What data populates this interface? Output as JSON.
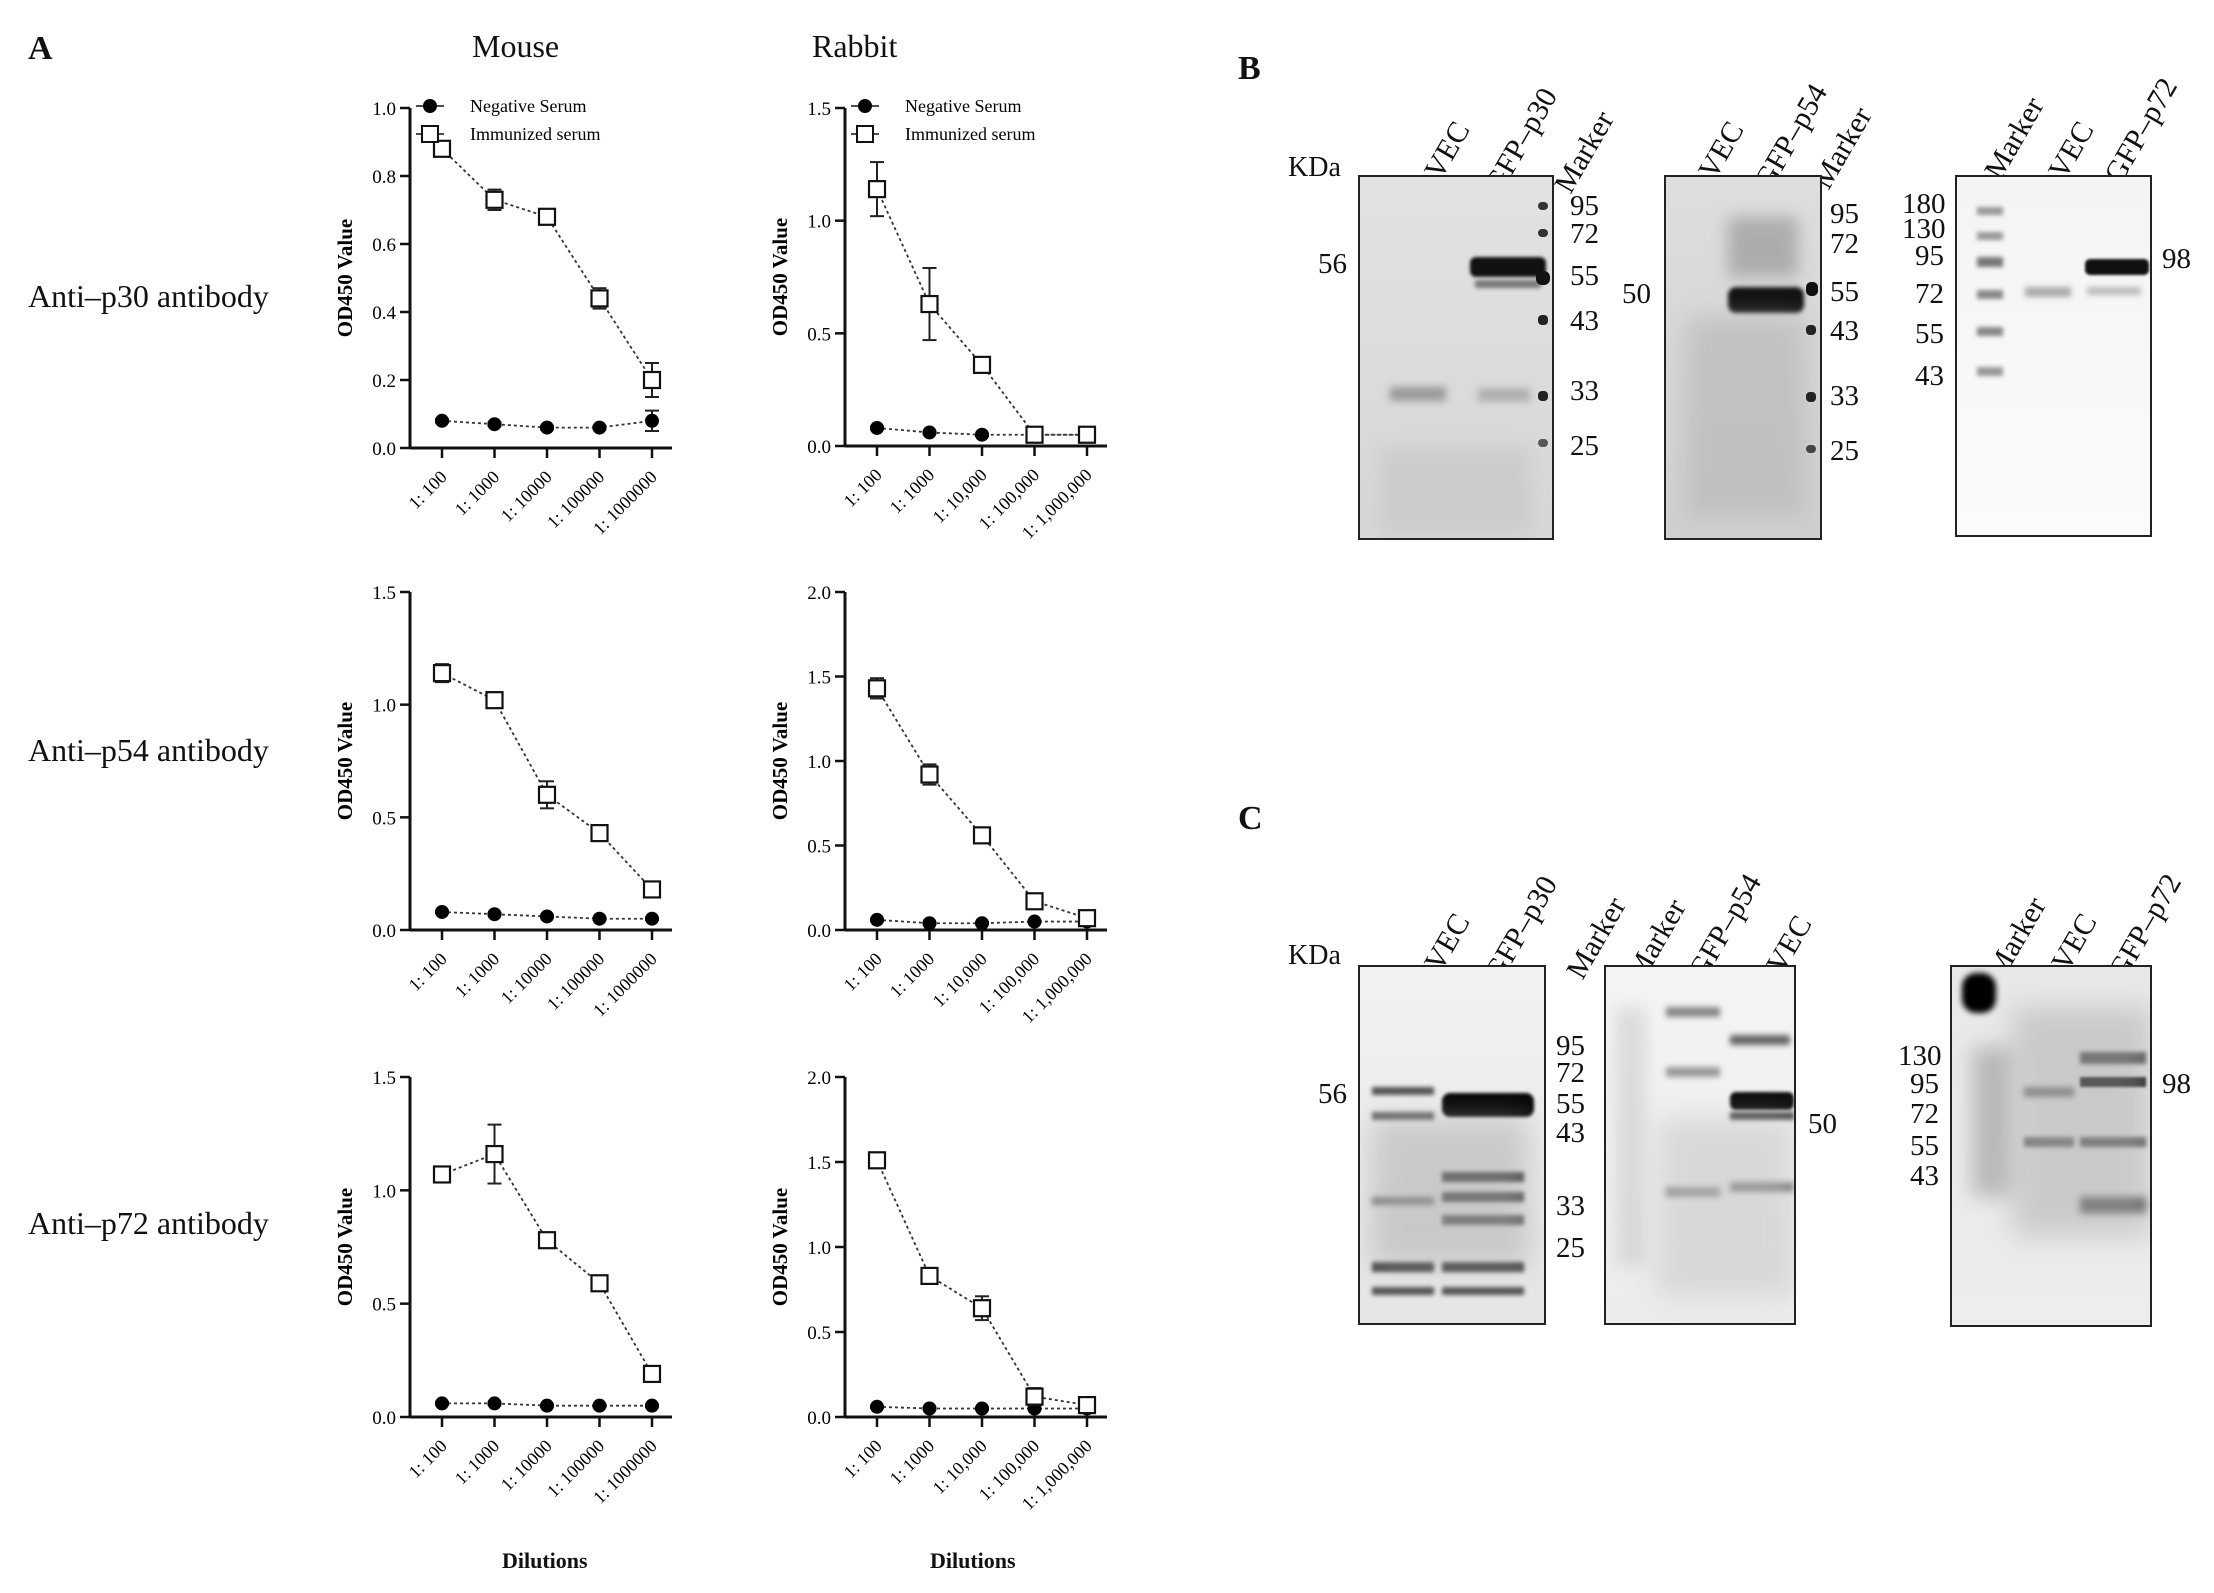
{
  "panels": {
    "A": "A",
    "B": "B",
    "C": "C"
  },
  "species": [
    "Mouse",
    "Rabbit"
  ],
  "row_labels": [
    "Anti–p30 antibody",
    "Anti–p54 antibody",
    "Anti–p72 antibody"
  ],
  "x_title": "Dilutions",
  "y_title": "OD450 Value",
  "legend": [
    "Negative Serum",
    "Immunized serum"
  ],
  "chart_data": [
    {
      "type": "line",
      "antibody": "Anti–p30 antibody",
      "species": "Mouse",
      "categories": [
        "1: 100",
        "1: 1000",
        "1: 10000",
        "1: 100000",
        "1: 1000000"
      ],
      "ylim": [
        0,
        1.0
      ],
      "yticks": [
        "0.0",
        "0.2",
        "0.4",
        "0.6",
        "0.8",
        "1.0"
      ],
      "ytick_values": [
        0,
        0.2,
        0.4,
        0.6,
        0.8,
        1.0
      ],
      "series": [
        {
          "name": "Negative Serum",
          "values": [
            0.08,
            0.07,
            0.06,
            0.06,
            0.08
          ],
          "err": [
            0.005,
            0.005,
            0.005,
            0.005,
            0.03
          ]
        },
        {
          "name": "Immunized serum",
          "values": [
            0.88,
            0.73,
            0.68,
            0.44,
            0.2
          ],
          "err": [
            0.015,
            0.03,
            0.02,
            0.03,
            0.05
          ]
        }
      ]
    },
    {
      "type": "line",
      "antibody": "Anti–p30 antibody",
      "species": "Rabbit",
      "categories": [
        "1: 100",
        "1: 1000",
        "1: 10,000",
        "1: 100,000",
        "1: 1,000,000"
      ],
      "ylim": [
        0,
        1.5
      ],
      "yticks": [
        "0.0",
        "0.5",
        "1.0",
        "1.5"
      ],
      "ytick_values": [
        0,
        0.5,
        1.0,
        1.5
      ],
      "series": [
        {
          "name": "Negative Serum",
          "values": [
            0.08,
            0.06,
            0.05,
            0.05,
            0.05
          ],
          "err": [
            0.005,
            0.005,
            0.005,
            0.005,
            0.005
          ]
        },
        {
          "name": "Immunized serum",
          "values": [
            1.14,
            0.63,
            0.36,
            0.05,
            0.05
          ],
          "err": [
            0.12,
            0.16,
            0.02,
            0.01,
            0.01
          ]
        }
      ]
    },
    {
      "type": "line",
      "antibody": "Anti–p54 antibody",
      "species": "Mouse",
      "categories": [
        "1: 100",
        "1: 1000",
        "1: 10000",
        "1: 100000",
        "1: 1000000"
      ],
      "ylim": [
        0,
        1.5
      ],
      "yticks": [
        "0.0",
        "0.5",
        "1.0",
        "1.5"
      ],
      "ytick_values": [
        0,
        0.5,
        1.0,
        1.5
      ],
      "series": [
        {
          "name": "Negative Serum",
          "values": [
            0.08,
            0.07,
            0.06,
            0.05,
            0.05
          ],
          "err": [
            0.005,
            0.005,
            0.005,
            0.005,
            0.005
          ]
        },
        {
          "name": "Immunized serum",
          "values": [
            1.14,
            1.02,
            0.6,
            0.43,
            0.18
          ],
          "err": [
            0.04,
            0.03,
            0.06,
            0.03,
            0.03
          ]
        }
      ]
    },
    {
      "type": "line",
      "antibody": "Anti–p54 antibody",
      "species": "Rabbit",
      "categories": [
        "1: 100",
        "1: 1000",
        "1: 10,000",
        "1: 100,000",
        "1: 1,000,000"
      ],
      "ylim": [
        0,
        2.0
      ],
      "yticks": [
        "0.0",
        "0.5",
        "1.0",
        "1.5",
        "2.0"
      ],
      "ytick_values": [
        0,
        0.5,
        1.0,
        1.5,
        2.0
      ],
      "series": [
        {
          "name": "Negative Serum",
          "values": [
            0.06,
            0.04,
            0.04,
            0.05,
            0.05
          ],
          "err": [
            0.005,
            0.005,
            0.005,
            0.005,
            0.005
          ]
        },
        {
          "name": "Immunized serum",
          "values": [
            1.43,
            0.92,
            0.56,
            0.17,
            0.07
          ],
          "err": [
            0.06,
            0.06,
            0.03,
            0.02,
            0.01
          ]
        }
      ]
    },
    {
      "type": "line",
      "antibody": "Anti–p72 antibody",
      "species": "Mouse",
      "categories": [
        "1: 100",
        "1: 1000",
        "1: 10000",
        "1: 100000",
        "1: 1000000"
      ],
      "ylim": [
        0,
        1.5
      ],
      "yticks": [
        "0.0",
        "0.5",
        "1.0",
        "1.5"
      ],
      "ytick_values": [
        0,
        0.5,
        1.0,
        1.5
      ],
      "series": [
        {
          "name": "Negative Serum",
          "values": [
            0.06,
            0.06,
            0.05,
            0.05,
            0.05
          ],
          "err": [
            0.005,
            0.005,
            0.005,
            0.005,
            0.005
          ]
        },
        {
          "name": "Immunized serum",
          "values": [
            1.07,
            1.16,
            0.78,
            0.59,
            0.19
          ],
          "err": [
            0.03,
            0.13,
            0.03,
            0.02,
            0.02
          ]
        }
      ]
    },
    {
      "type": "line",
      "antibody": "Anti–p72 antibody",
      "species": "Rabbit",
      "categories": [
        "1: 100",
        "1: 1000",
        "1: 10,000",
        "1: 100,000",
        "1: 1,000,000"
      ],
      "ylim": [
        0,
        2.0
      ],
      "yticks": [
        "0.0",
        "0.5",
        "1.0",
        "1.5",
        "2.0"
      ],
      "ytick_values": [
        0,
        0.5,
        1.0,
        1.5,
        2.0
      ],
      "series": [
        {
          "name": "Negative Serum",
          "values": [
            0.06,
            0.05,
            0.05,
            0.05,
            0.05
          ],
          "err": [
            0.005,
            0.005,
            0.005,
            0.005,
            0.005
          ]
        },
        {
          "name": "Immunized serum",
          "values": [
            1.51,
            0.83,
            0.64,
            0.12,
            0.07
          ],
          "err": [
            0.03,
            0.03,
            0.07,
            0.05,
            0.01
          ]
        }
      ]
    }
  ],
  "blots": {
    "B": [
      {
        "lanes": [
          "VEC",
          "GFP–p30",
          "Marker"
        ],
        "kda_label": "KDa",
        "band_label": "56",
        "markers": [
          "95",
          "72",
          "55",
          "43",
          "33",
          "25"
        ]
      },
      {
        "lanes": [
          "VEC",
          "GFP–p54",
          "Marker"
        ],
        "band_label": "50",
        "markers": [
          "95",
          "72",
          "55",
          "43",
          "33",
          "25"
        ]
      },
      {
        "lanes": [
          "Marker",
          "VEC",
          "GFP–p72"
        ],
        "band_label": "98",
        "markers": [
          "180",
          "130",
          "95",
          "72",
          "55",
          "43"
        ]
      }
    ],
    "C": [
      {
        "lanes": [
          "VEC",
          "GFP–p30",
          "Marker"
        ],
        "kda_label": "KDa",
        "band_label": "56",
        "markers": [
          "95",
          "72",
          "55",
          "43",
          "33",
          "25"
        ]
      },
      {
        "lanes": [
          "Marker",
          "GFP–p54",
          "VEC"
        ],
        "band_label": "50"
      },
      {
        "lanes": [
          "Marker",
          "VEC",
          "GFP–p72"
        ],
        "band_label": "98",
        "markers": [
          "130",
          "95",
          "72",
          "55",
          "43"
        ]
      }
    ]
  }
}
